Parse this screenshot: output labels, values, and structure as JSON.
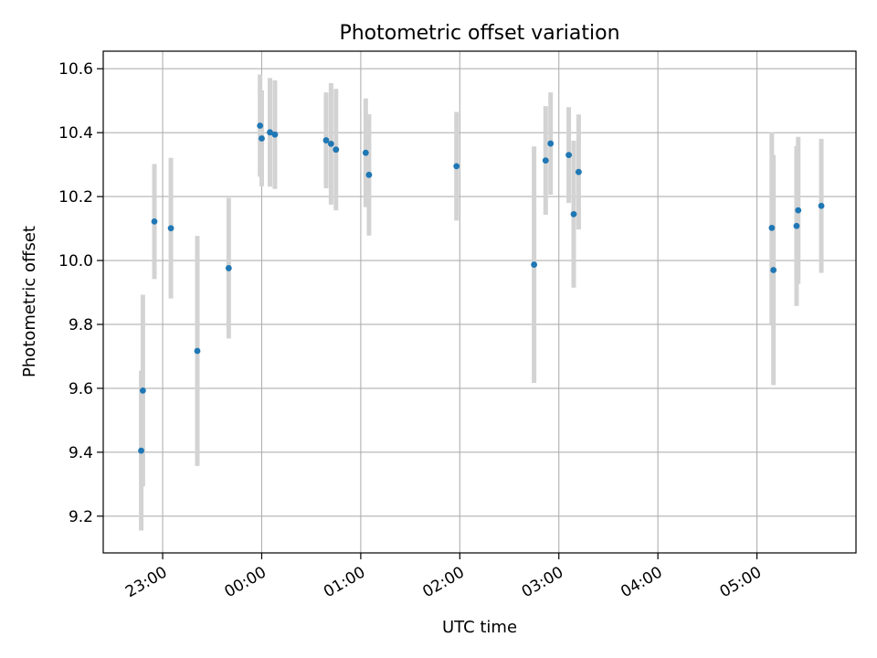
{
  "chart_data": {
    "type": "scatter",
    "title": "Photometric offset variation",
    "xlabel": "UTC time",
    "ylabel": "Photometric offset",
    "x_ticks": [
      "23:00",
      "00:00",
      "01:00",
      "02:00",
      "03:00",
      "04:00",
      "05:00"
    ],
    "y_ticks": [
      "9.2",
      "9.4",
      "9.6",
      "9.8",
      "10.0",
      "10.2",
      "10.4",
      "10.6"
    ],
    "xlim": [
      "22:24",
      "06:00"
    ],
    "ylim": [
      9.085,
      10.655
    ],
    "grid": true,
    "colors": {
      "point": "#1f77b4",
      "errorbar": "#d3d3d3",
      "grid": "#b0b0b0"
    },
    "series": [
      {
        "time": [
          "22:47",
          "22:48",
          "22:55",
          "23:05",
          "23:21",
          "23:40",
          "23:59",
          "00:00",
          "00:05",
          "00:08",
          "00:39",
          "00:42",
          "00:45",
          "01:03",
          "01:05",
          "01:58",
          "02:45",
          "02:52",
          "02:55",
          "03:06",
          "03:09",
          "03:12",
          "05:09",
          "05:10",
          "05:24",
          "05:25",
          "05:39"
        ],
        "y": [
          9.405,
          9.593,
          10.122,
          10.101,
          9.717,
          9.976,
          10.422,
          10.382,
          10.401,
          10.394,
          10.376,
          10.365,
          10.347,
          10.337,
          10.268,
          10.295,
          9.987,
          10.313,
          10.366,
          10.33,
          10.145,
          10.277,
          10.102,
          9.97,
          10.108,
          10.157,
          10.171
        ],
        "yerr": [
          0.25,
          0.3,
          0.18,
          0.22,
          0.36,
          0.22,
          0.16,
          0.15,
          0.17,
          0.17,
          0.15,
          0.19,
          0.19,
          0.17,
          0.19,
          0.17,
          0.37,
          0.17,
          0.16,
          0.15,
          0.23,
          0.18,
          0.3,
          0.36,
          0.25,
          0.23,
          0.21
        ]
      }
    ]
  }
}
